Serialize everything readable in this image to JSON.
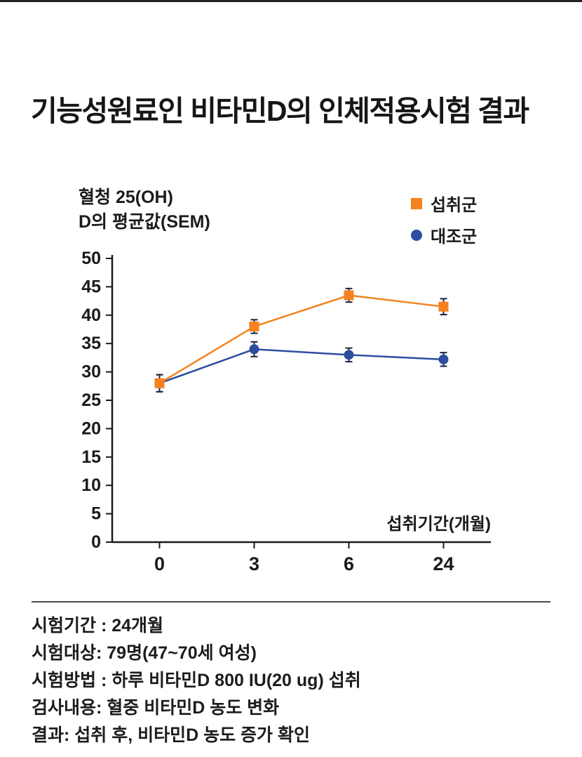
{
  "page": {
    "title": "기능성원료인 비타민D의 인체적용시험 결과"
  },
  "chart_data": {
    "type": "line",
    "y_axis_label_line1": "혈청 25(OH)",
    "y_axis_label_line2": "D의 평균값(SEM)",
    "x_axis_label": "섭취기간(개월)",
    "categories": [
      "0",
      "3",
      "6",
      "24"
    ],
    "y_ticks": [
      50,
      45,
      40,
      35,
      30,
      25,
      20,
      15,
      10,
      5,
      0
    ],
    "ylim": [
      0,
      50
    ],
    "grid": false,
    "legend_position": "top-right",
    "error_bar_color": "#1e2440",
    "axis_color": "#1a1a1a",
    "series": [
      {
        "name": "섭취군",
        "marker": "square",
        "color": "#f5821f",
        "values": [
          28,
          38,
          43.5,
          41.5
        ],
        "errors": [
          1.5,
          1.2,
          1.2,
          1.4
        ]
      },
      {
        "name": "대조군",
        "marker": "circle",
        "color": "#2d4e9e",
        "values": [
          28,
          34,
          33,
          32.2
        ],
        "errors": [
          1.5,
          1.3,
          1.2,
          1.2
        ]
      }
    ]
  },
  "footer": {
    "lines": [
      "시험기간 : 24개월",
      "시험대상: 79명(47~70세 여성)",
      "시험방법 : 하루 비타민D 800 IU(20 ug) 섭취",
      "검사내용: 혈중 비타민D 농도 변화",
      "결과: 섭취 후, 비타민D 농도 증가 확인"
    ]
  }
}
